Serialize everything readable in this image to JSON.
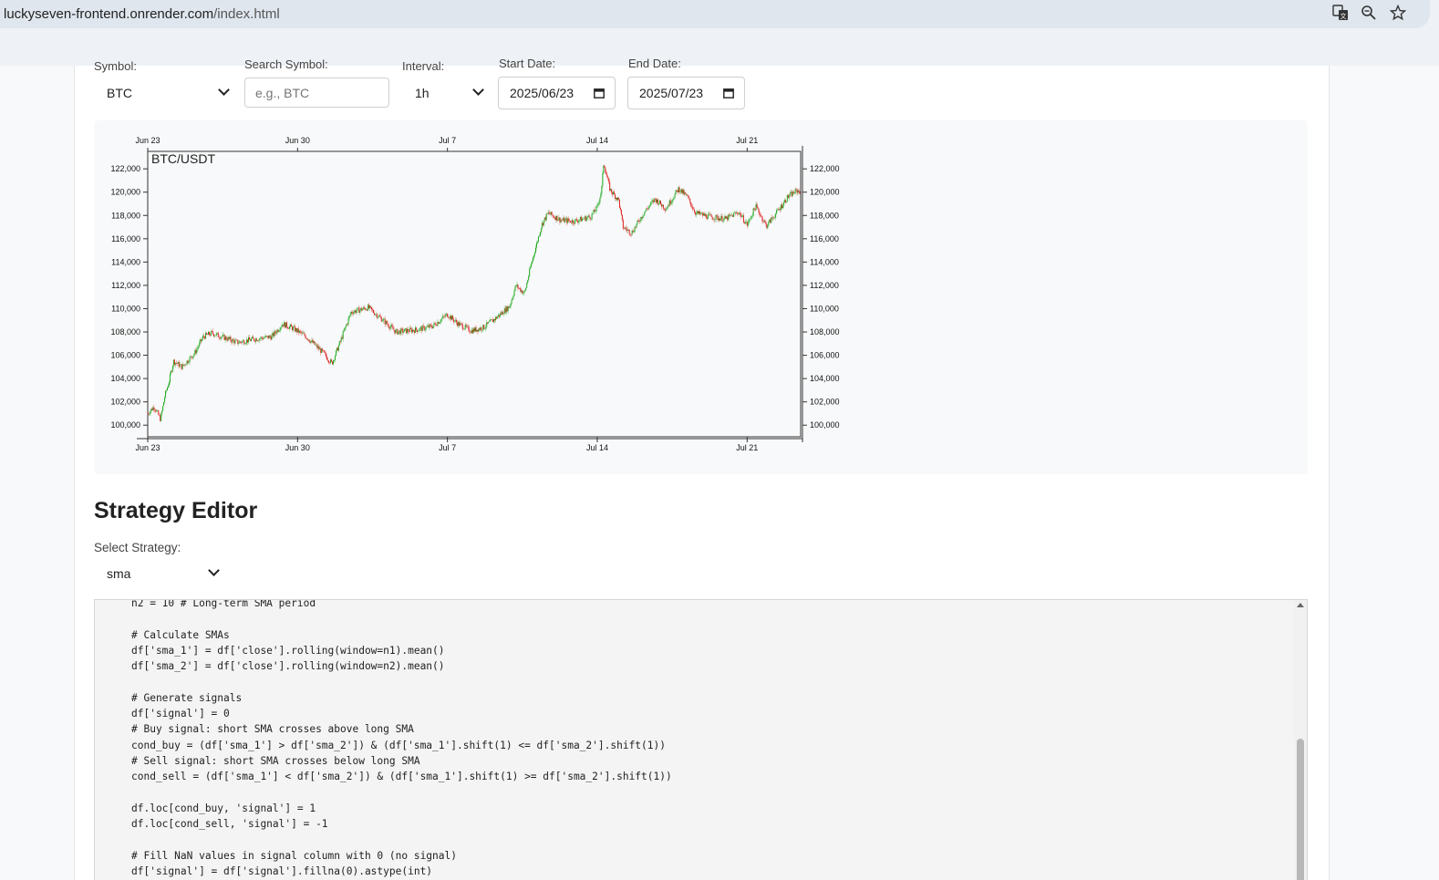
{
  "browser": {
    "url_host": "luckyseven-frontend.onrender.com",
    "url_path": "/index.html",
    "icons": [
      "translate-icon",
      "zoom-icon",
      "bookmark-star-icon"
    ]
  },
  "controls": {
    "symbol_label": "Symbol:",
    "symbol_value": "BTC",
    "search_label": "Search Symbol:",
    "search_placeholder": "e.g., BTC",
    "interval_label": "Interval:",
    "interval_value": "1h",
    "start_label": "Start Date:",
    "start_value": "2025/06/23",
    "end_label": "End Date:",
    "end_value": "2025/07/23"
  },
  "chart_data": {
    "type": "candlestick",
    "title": "BTC/USDT",
    "x_ticks": [
      "Jun 23",
      "Jun 30",
      "Jul 7",
      "Jul 14",
      "Jul 21"
    ],
    "y_ticks": [
      "100,000",
      "102,000",
      "104,000",
      "106,000",
      "108,000",
      "110,000",
      "112,000",
      "114,000",
      "116,000",
      "118,000",
      "120,000",
      "122,000"
    ],
    "ylim": [
      99000,
      123500
    ],
    "xlim_days": [
      0,
      30.5
    ],
    "close_path": [
      [
        0,
        101000
      ],
      [
        0.3,
        101600
      ],
      [
        0.6,
        100500
      ],
      [
        0.8,
        102500
      ],
      [
        1.0,
        103800
      ],
      [
        1.2,
        105500
      ],
      [
        1.6,
        105000
      ],
      [
        2.2,
        106200
      ],
      [
        2.6,
        107600
      ],
      [
        3.0,
        107900
      ],
      [
        3.6,
        107500
      ],
      [
        4.2,
        107100
      ],
      [
        5.0,
        107400
      ],
      [
        5.8,
        107600
      ],
      [
        6.3,
        108700
      ],
      [
        6.8,
        108300
      ],
      [
        7.4,
        107600
      ],
      [
        8.2,
        106200
      ],
      [
        8.6,
        105300
      ],
      [
        9.0,
        107200
      ],
      [
        9.5,
        109700
      ],
      [
        10.3,
        110100
      ],
      [
        11.0,
        109000
      ],
      [
        11.6,
        108000
      ],
      [
        12.6,
        108200
      ],
      [
        13.3,
        108500
      ],
      [
        14.0,
        109500
      ],
      [
        14.5,
        108700
      ],
      [
        15.1,
        108100
      ],
      [
        15.7,
        108400
      ],
      [
        16.2,
        109100
      ],
      [
        16.9,
        110200
      ],
      [
        17.2,
        112000
      ],
      [
        17.6,
        111300
      ],
      [
        17.9,
        113700
      ],
      [
        18.4,
        117200
      ],
      [
        18.7,
        118200
      ],
      [
        19.3,
        117600
      ],
      [
        19.9,
        117500
      ],
      [
        20.7,
        117900
      ],
      [
        21.0,
        118700
      ],
      [
        21.2,
        120200
      ],
      [
        21.3,
        122600
      ],
      [
        21.4,
        121700
      ],
      [
        21.6,
        120200
      ],
      [
        22.0,
        119300
      ],
      [
        22.2,
        117000
      ],
      [
        22.6,
        116500
      ],
      [
        23.2,
        118300
      ],
      [
        23.7,
        119400
      ],
      [
        24.2,
        118600
      ],
      [
        24.8,
        120300
      ],
      [
        25.2,
        119600
      ],
      [
        25.6,
        118200
      ],
      [
        26.2,
        117900
      ],
      [
        27.0,
        117700
      ],
      [
        27.6,
        118300
      ],
      [
        28.0,
        117200
      ],
      [
        28.4,
        118800
      ],
      [
        28.9,
        117100
      ],
      [
        29.4,
        118300
      ],
      [
        29.9,
        119600
      ],
      [
        30.3,
        120100
      ]
    ]
  },
  "strategy": {
    "heading": "Strategy Editor",
    "select_label": "Select Strategy:",
    "select_value": "sma",
    "code_lines": [
      "n2 = 10 # Long-term SMA period",
      "",
      "# Calculate SMAs",
      "df['sma_1'] = df['close'].rolling(window=n1).mean()",
      "df['sma_2'] = df['close'].rolling(window=n2).mean()",
      "",
      "# Generate signals",
      "df['signal'] = 0",
      "# Buy signal: short SMA crosses above long SMA",
      "cond_buy = (df['sma_1'] > df['sma_2']) & (df['sma_1'].shift(1) <= df['sma_2'].shift(1))",
      "# Sell signal: short SMA crosses below long SMA",
      "cond_sell = (df['sma_1'] < df['sma_2']) & (df['sma_1'].shift(1) >= df['sma_2'].shift(1))",
      "",
      "df.loc[cond_buy, 'signal'] = 1",
      "df.loc[cond_sell, 'signal'] = -1",
      "",
      "# Fill NaN values in signal column with 0 (no signal)",
      "df['signal'] = df['signal'].fillna(0).astype(int)"
    ]
  }
}
